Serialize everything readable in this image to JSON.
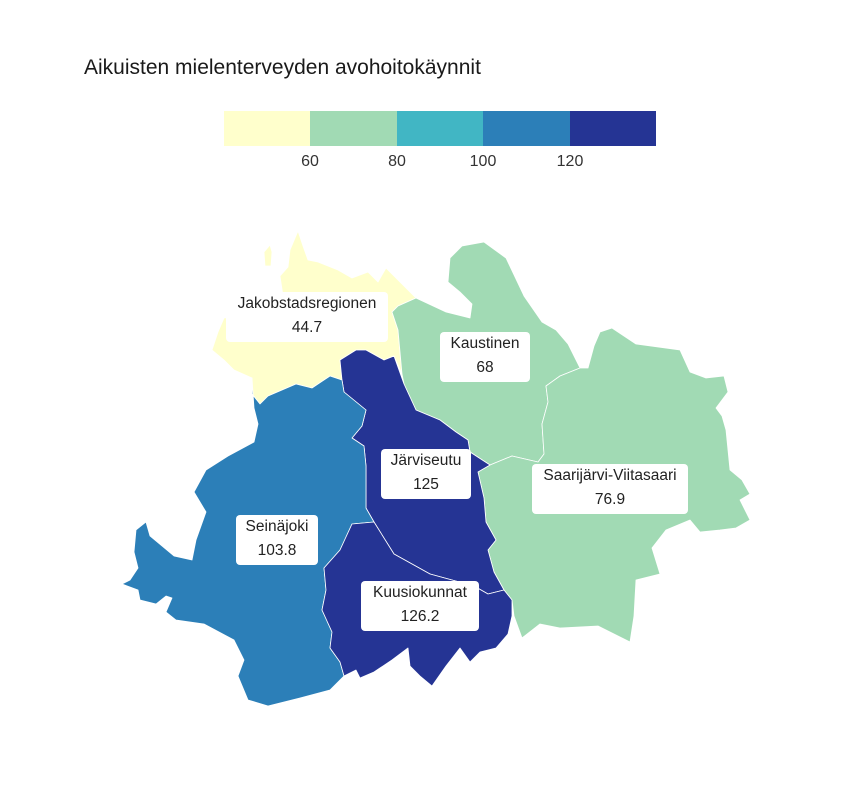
{
  "title": "Aikuisten mielenterveyden avohoitokäynnit",
  "legend": {
    "colors": [
      "#ffffcc",
      "#a1dab4",
      "#41b6c4",
      "#2c7fb8",
      "#253494"
    ],
    "ticks": [
      "60",
      "80",
      "100",
      "120"
    ]
  },
  "regions": [
    {
      "name": "Jakobstadsregionen",
      "value": "44.7",
      "color": "#ffffcc"
    },
    {
      "name": "Kaustinen",
      "value": "68",
      "color": "#a1dab4"
    },
    {
      "name": "Saarijärvi-Viitasaari",
      "value": "76.9",
      "color": "#a1dab4"
    },
    {
      "name": "Järviseutu",
      "value": "125",
      "color": "#253494"
    },
    {
      "name": "Seinäjoki",
      "value": "103.8",
      "color": "#2c7fb8"
    },
    {
      "name": "Kuusiokunnat",
      "value": "126.2",
      "color": "#253494"
    }
  ]
}
